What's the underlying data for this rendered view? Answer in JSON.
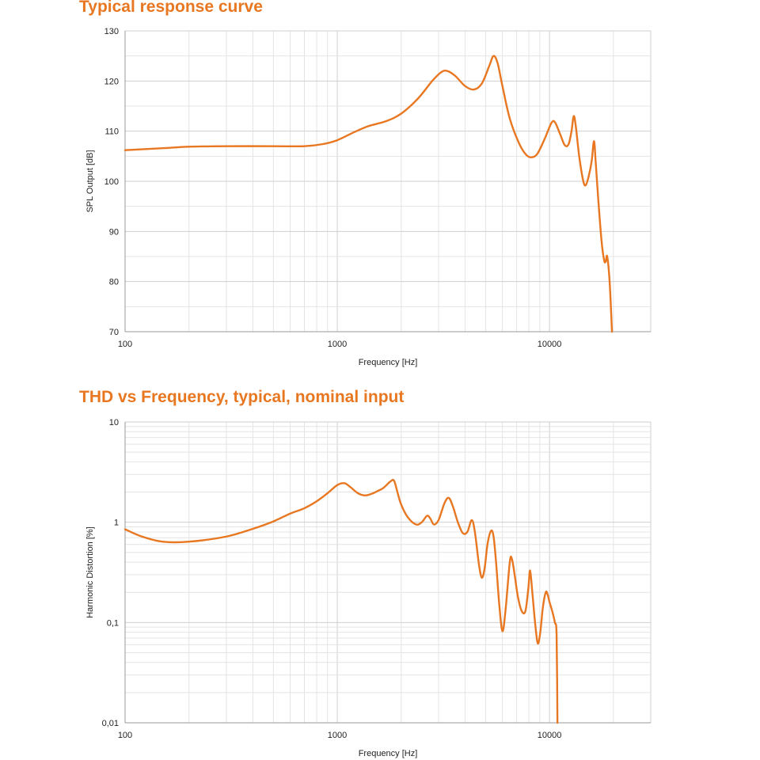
{
  "chart_data": [
    {
      "type": "line",
      "title": "Typical response curve",
      "xlabel": "Frequency [Hz]",
      "ylabel": "SPL Output [dB]",
      "xscale": "log",
      "xlim": [
        100,
        30000
      ],
      "ylim": [
        70,
        130
      ],
      "x_ticks": [
        {
          "v": 100,
          "label": "100"
        },
        {
          "v": 1000,
          "label": "1000"
        },
        {
          "v": 10000,
          "label": "10000"
        }
      ],
      "y_ticks": [
        {
          "v": 70,
          "label": "70"
        },
        {
          "v": 80,
          "label": "80"
        },
        {
          "v": 90,
          "label": "90"
        },
        {
          "v": 100,
          "label": "100"
        },
        {
          "v": 110,
          "label": "110"
        },
        {
          "v": 120,
          "label": "120"
        },
        {
          "v": 130,
          "label": "130"
        }
      ],
      "grid": true,
      "color": "#e87722",
      "series": [
        {
          "points": [
            [
              100,
              106.2
            ],
            [
              150,
              106.6
            ],
            [
              200,
              106.9
            ],
            [
              300,
              107.0
            ],
            [
              500,
              107.0
            ],
            [
              700,
              107.0
            ],
            [
              850,
              107.4
            ],
            [
              1000,
              108.2
            ],
            [
              1200,
              109.8
            ],
            [
              1400,
              111.0
            ],
            [
              1700,
              112.0
            ],
            [
              2000,
              113.5
            ],
            [
              2400,
              116.5
            ],
            [
              2800,
              120.0
            ],
            [
              3100,
              121.8
            ],
            [
              3300,
              122.0
            ],
            [
              3600,
              121.0
            ],
            [
              4000,
              119.0
            ],
            [
              4400,
              118.3
            ],
            [
              4800,
              119.5
            ],
            [
              5200,
              123.0
            ],
            [
              5450,
              125.0
            ],
            [
              5700,
              123.5
            ],
            [
              6000,
              119.0
            ],
            [
              6500,
              112.5
            ],
            [
              7200,
              107.5
            ],
            [
              7800,
              105.2
            ],
            [
              8300,
              104.8
            ],
            [
              8800,
              105.6
            ],
            [
              9500,
              108.5
            ],
            [
              10200,
              111.6
            ],
            [
              10600,
              111.8
            ],
            [
              11200,
              109.5
            ],
            [
              11800,
              107.2
            ],
            [
              12300,
              107.4
            ],
            [
              12700,
              110.0
            ],
            [
              13000,
              113.0
            ],
            [
              13300,
              111.0
            ],
            [
              13800,
              105.0
            ],
            [
              14400,
              100.2
            ],
            [
              14800,
              99.2
            ],
            [
              15300,
              101.0
            ],
            [
              15800,
              104.0
            ],
            [
              16200,
              108.0
            ],
            [
              16500,
              104.0
            ],
            [
              17000,
              96.0
            ],
            [
              17600,
              88.0
            ],
            [
              18100,
              84.2
            ],
            [
              18400,
              84.0
            ],
            [
              18700,
              85.0
            ],
            [
              19200,
              80.0
            ],
            [
              19700,
              70.0
            ]
          ]
        }
      ]
    },
    {
      "type": "line",
      "title": "THD vs Frequency, typical, nominal input",
      "xlabel": "Frequency [Hz]",
      "ylabel": "Harmonic Distortion [%]",
      "xscale": "log",
      "yscale": "log",
      "xlim": [
        100,
        30000
      ],
      "ylim": [
        0.01,
        10
      ],
      "x_ticks": [
        {
          "v": 100,
          "label": "100"
        },
        {
          "v": 1000,
          "label": "1000"
        },
        {
          "v": 10000,
          "label": "10000"
        }
      ],
      "y_ticks": [
        {
          "v": 0.01,
          "label": "0,01"
        },
        {
          "v": 0.1,
          "label": "0,1"
        },
        {
          "v": 1,
          "label": "1"
        },
        {
          "v": 10,
          "label": "10"
        }
      ],
      "grid": true,
      "color": "#e87722",
      "series": [
        {
          "points": [
            [
              100,
              0.85
            ],
            [
              120,
              0.72
            ],
            [
              150,
              0.64
            ],
            [
              200,
              0.64
            ],
            [
              300,
              0.72
            ],
            [
              400,
              0.86
            ],
            [
              500,
              1.02
            ],
            [
              600,
              1.22
            ],
            [
              700,
              1.38
            ],
            [
              800,
              1.62
            ],
            [
              900,
              1.95
            ],
            [
              1000,
              2.35
            ],
            [
              1080,
              2.45
            ],
            [
              1150,
              2.25
            ],
            [
              1250,
              1.95
            ],
            [
              1350,
              1.85
            ],
            [
              1450,
              1.92
            ],
            [
              1550,
              2.05
            ],
            [
              1650,
              2.2
            ],
            [
              1780,
              2.55
            ],
            [
              1850,
              2.6
            ],
            [
              1920,
              2.0
            ],
            [
              2000,
              1.5
            ],
            [
              2150,
              1.12
            ],
            [
              2350,
              0.95
            ],
            [
              2500,
              1.0
            ],
            [
              2650,
              1.16
            ],
            [
              2750,
              1.08
            ],
            [
              2850,
              0.95
            ],
            [
              3000,
              1.05
            ],
            [
              3200,
              1.55
            ],
            [
              3350,
              1.75
            ],
            [
              3500,
              1.45
            ],
            [
              3700,
              1.0
            ],
            [
              3900,
              0.78
            ],
            [
              4100,
              0.8
            ],
            [
              4300,
              1.05
            ],
            [
              4450,
              0.8
            ],
            [
              4650,
              0.38
            ],
            [
              4800,
              0.28
            ],
            [
              4950,
              0.35
            ],
            [
              5100,
              0.6
            ],
            [
              5300,
              0.82
            ],
            [
              5450,
              0.72
            ],
            [
              5600,
              0.4
            ],
            [
              5800,
              0.15
            ],
            [
              6000,
              0.082
            ],
            [
              6200,
              0.13
            ],
            [
              6500,
              0.4
            ],
            [
              6650,
              0.43
            ],
            [
              6850,
              0.3
            ],
            [
              7100,
              0.18
            ],
            [
              7400,
              0.13
            ],
            [
              7700,
              0.13
            ],
            [
              7950,
              0.22
            ],
            [
              8100,
              0.33
            ],
            [
              8300,
              0.2
            ],
            [
              8550,
              0.1
            ],
            [
              8800,
              0.062
            ],
            [
              9050,
              0.08
            ],
            [
              9300,
              0.14
            ],
            [
              9600,
              0.2
            ],
            [
              9800,
              0.19
            ],
            [
              10000,
              0.16
            ],
            [
              10300,
              0.13
            ],
            [
              10600,
              0.1
            ],
            [
              10800,
              0.075
            ],
            [
              10900,
              0.01
            ]
          ]
        }
      ]
    }
  ]
}
